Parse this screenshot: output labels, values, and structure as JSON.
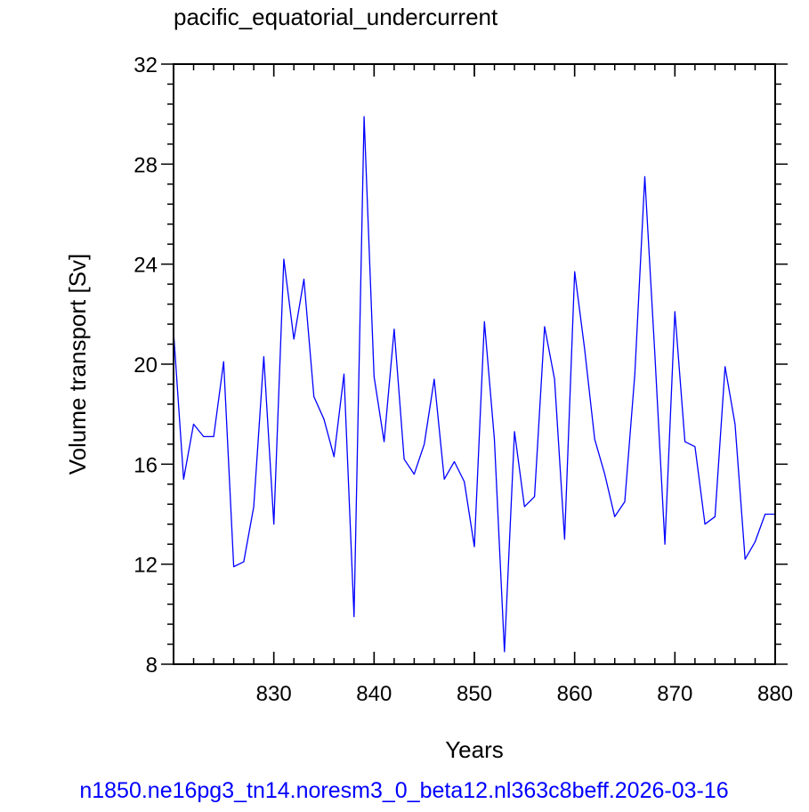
{
  "chart_data": {
    "type": "line",
    "title": "pacific_equatorial_undercurrent",
    "xlabel": "Years",
    "ylabel": "Volume transport [Sv]",
    "xlim": [
      820,
      880
    ],
    "ylim": [
      8,
      32
    ],
    "xticks": [
      830,
      840,
      850,
      860,
      870,
      880
    ],
    "yticks": [
      8,
      12,
      16,
      20,
      24,
      28,
      32
    ],
    "grid": false,
    "line_color": "#0000ff",
    "footer": "n1850.ne16pg3_tn14.noresm3_0_beta12.nl363c8beff.2026-03-16",
    "footer_color": "#0000ff",
    "x": [
      820,
      821,
      822,
      823,
      824,
      825,
      826,
      827,
      828,
      829,
      830,
      831,
      832,
      833,
      834,
      835,
      836,
      837,
      838,
      839,
      840,
      841,
      842,
      843,
      844,
      845,
      846,
      847,
      848,
      849,
      850,
      851,
      852,
      853,
      854,
      855,
      856,
      857,
      858,
      859,
      860,
      861,
      862,
      863,
      864,
      865,
      866,
      867,
      868,
      869,
      870,
      871,
      872,
      873,
      874,
      875,
      876,
      877,
      878,
      879,
      880
    ],
    "values": [
      21.3,
      15.4,
      17.6,
      17.1,
      17.1,
      20.1,
      11.9,
      12.1,
      14.3,
      20.3,
      13.6,
      24.2,
      21.0,
      23.4,
      18.7,
      17.8,
      16.3,
      19.6,
      9.9,
      29.9,
      19.5,
      16.9,
      21.4,
      16.2,
      15.6,
      16.8,
      19.4,
      15.4,
      16.1,
      15.3,
      12.7,
      21.7,
      17.0,
      8.5,
      17.3,
      14.3,
      14.7,
      21.5,
      19.4,
      13.0,
      23.7,
      20.6,
      17.0,
      15.6,
      13.9,
      14.5,
      19.6,
      27.5,
      20.4,
      12.8,
      22.1,
      16.9,
      16.7,
      13.6,
      13.9,
      19.9,
      17.6,
      12.2,
      12.9,
      14.0,
      14.0
    ]
  }
}
